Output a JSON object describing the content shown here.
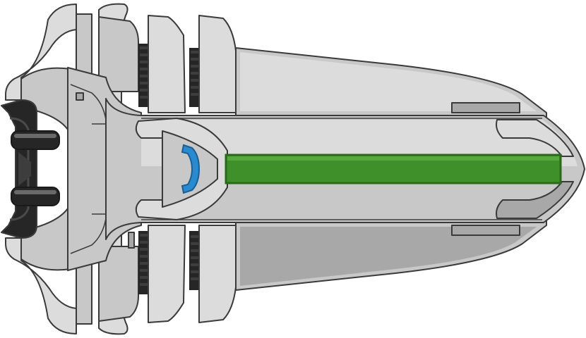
{
  "sprite": {
    "subject": "spaceship-sprite-top-down",
    "colors": {
      "background": "#ffffff",
      "outline": "#3a3a3a",
      "hull": "#c8c8c8",
      "hull_light": "#dcdcdc",
      "hull_dark": "#a8a8a8",
      "hull_shadow": "#8e8e8e",
      "engine": "#262626",
      "engine_mid": "#3d3d3d",
      "engine_highlight": "#6a6a6a",
      "accent_green": "#3f8f2a",
      "accent_green_dark": "#2b6a1c",
      "accent_blue": "#2a8ad0",
      "accent_blue_dark": "#1a5f94"
    },
    "icons": [
      "engine-thruster-icon",
      "cockpit-window-icon",
      "energy-core-icon"
    ]
  }
}
